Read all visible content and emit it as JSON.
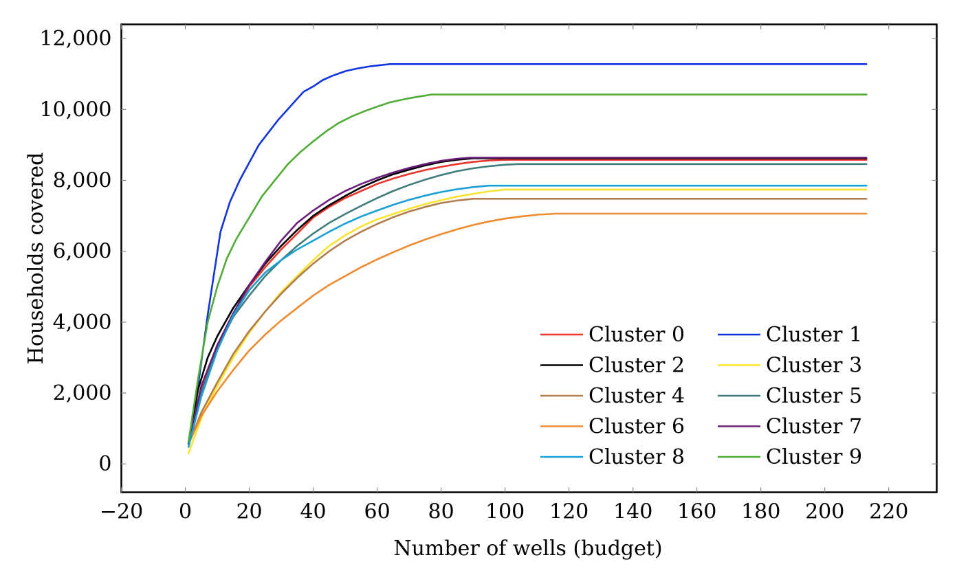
{
  "chart_data": {
    "type": "line",
    "title": "",
    "xlabel": "Number of wells (budget)",
    "ylabel": "Households covered",
    "xlim": [
      -20,
      235
    ],
    "ylim": [
      -800,
      12400
    ],
    "xticks": [
      -20,
      0,
      20,
      40,
      60,
      80,
      100,
      120,
      140,
      160,
      180,
      200,
      220
    ],
    "xtick_labels": [
      "−20",
      "0",
      "20",
      "40",
      "60",
      "80",
      "100",
      "120",
      "140",
      "160",
      "180",
      "200",
      "220"
    ],
    "yticks": [
      0,
      2000,
      4000,
      6000,
      8000,
      10000,
      12000
    ],
    "ytick_labels": [
      "0",
      "2,000",
      "4,000",
      "6,000",
      "8,000",
      "10,000",
      "12,000"
    ],
    "grid": false,
    "legend": {
      "position": "bottom-right",
      "columns": 2
    },
    "series": [
      {
        "name": "Cluster 0",
        "color": "#e8352e",
        "x": [
          1,
          5,
          10,
          15,
          20,
          25,
          30,
          35,
          40,
          45,
          50,
          55,
          60,
          65,
          70,
          75,
          80,
          85,
          90,
          95,
          100,
          213
        ],
        "y": [
          580,
          2100,
          3350,
          4250,
          5000,
          5550,
          6050,
          6500,
          6950,
          7250,
          7500,
          7700,
          7900,
          8050,
          8180,
          8290,
          8380,
          8460,
          8520,
          8560,
          8580,
          8580
        ]
      },
      {
        "name": "Cluster 1",
        "color": "#1033e0",
        "x": [
          1,
          4,
          7,
          11,
          14,
          17,
          20,
          23,
          26,
          29,
          32,
          35,
          37,
          40,
          43,
          46,
          50,
          54,
          58,
          62,
          64,
          213
        ],
        "y": [
          600,
          2200,
          4200,
          6550,
          7400,
          8000,
          8500,
          9000,
          9350,
          9700,
          10000,
          10300,
          10500,
          10650,
          10830,
          10950,
          11080,
          11160,
          11220,
          11260,
          11280,
          11280
        ]
      },
      {
        "name": "Cluster 2",
        "color": "#000000",
        "x": [
          1,
          4,
          7,
          10,
          15,
          20,
          25,
          30,
          35,
          40,
          45,
          50,
          55,
          60,
          65,
          70,
          75,
          80,
          85,
          90,
          213
        ],
        "y": [
          580,
          2100,
          3000,
          3600,
          4400,
          5050,
          5650,
          6150,
          6600,
          7000,
          7300,
          7560,
          7800,
          8000,
          8170,
          8300,
          8420,
          8520,
          8580,
          8620,
          8620
        ]
      },
      {
        "name": "Cluster 3",
        "color": "#f8e42f",
        "x": [
          1,
          3,
          6,
          10,
          15,
          20,
          25,
          30,
          35,
          40,
          45,
          50,
          55,
          60,
          65,
          70,
          75,
          80,
          85,
          90,
          95,
          100,
          213
        ],
        "y": [
          300,
          800,
          1500,
          2200,
          3000,
          3700,
          4300,
          4850,
          5300,
          5750,
          6150,
          6450,
          6700,
          6900,
          7050,
          7200,
          7330,
          7440,
          7540,
          7620,
          7690,
          7740,
          7740
        ]
      },
      {
        "name": "Cluster 4",
        "color": "#b07d4e",
        "x": [
          1,
          5,
          10,
          15,
          20,
          25,
          30,
          35,
          40,
          45,
          50,
          55,
          60,
          65,
          70,
          75,
          80,
          85,
          90,
          213
        ],
        "y": [
          550,
          1450,
          2300,
          3100,
          3750,
          4300,
          4800,
          5250,
          5650,
          6000,
          6300,
          6550,
          6770,
          6960,
          7120,
          7250,
          7360,
          7430,
          7480,
          7480
        ]
      },
      {
        "name": "Cluster 5",
        "color": "#3f7c7a",
        "x": [
          1,
          5,
          10,
          15,
          20,
          25,
          30,
          35,
          40,
          45,
          50,
          55,
          60,
          65,
          70,
          75,
          80,
          85,
          90,
          95,
          100,
          104,
          213
        ],
        "y": [
          560,
          2000,
          3250,
          4150,
          4750,
          5300,
          5750,
          6150,
          6500,
          6800,
          7050,
          7280,
          7500,
          7700,
          7870,
          8020,
          8150,
          8260,
          8340,
          8400,
          8440,
          8460,
          8460
        ]
      },
      {
        "name": "Cluster 6",
        "color": "#f08a2e",
        "x": [
          1,
          5,
          10,
          15,
          20,
          25,
          30,
          35,
          40,
          45,
          50,
          55,
          60,
          65,
          70,
          75,
          80,
          85,
          90,
          95,
          100,
          105,
          110,
          116,
          213
        ],
        "y": [
          560,
          1350,
          2050,
          2650,
          3200,
          3650,
          4050,
          4400,
          4750,
          5050,
          5300,
          5550,
          5770,
          5970,
          6160,
          6330,
          6480,
          6620,
          6740,
          6840,
          6920,
          6980,
          7030,
          7060,
          7060
        ]
      },
      {
        "name": "Cluster 7",
        "color": "#6b1d7a",
        "x": [
          1,
          5,
          10,
          15,
          20,
          25,
          30,
          35,
          40,
          45,
          50,
          55,
          60,
          65,
          70,
          75,
          80,
          85,
          89,
          213
        ],
        "y": [
          560,
          2200,
          3350,
          4250,
          5050,
          5700,
          6300,
          6800,
          7150,
          7450,
          7700,
          7900,
          8070,
          8220,
          8350,
          8460,
          8550,
          8610,
          8640,
          8640
        ]
      },
      {
        "name": "Cluster 8",
        "color": "#18a0d6",
        "x": [
          1,
          5,
          10,
          15,
          20,
          25,
          30,
          35,
          40,
          45,
          50,
          55,
          60,
          65,
          70,
          75,
          80,
          85,
          90,
          95,
          213
        ],
        "y": [
          480,
          1900,
          3200,
          4200,
          4900,
          5400,
          5750,
          6050,
          6300,
          6550,
          6780,
          6980,
          7150,
          7310,
          7450,
          7570,
          7670,
          7750,
          7810,
          7850,
          7850
        ]
      },
      {
        "name": "Cluster 9",
        "color": "#4fac34",
        "x": [
          1,
          4,
          7,
          10,
          13,
          16,
          20,
          24,
          28,
          32,
          36,
          40,
          44,
          48,
          52,
          56,
          60,
          64,
          68,
          72,
          77,
          213
        ],
        "y": [
          620,
          2400,
          4000,
          5000,
          5800,
          6350,
          6950,
          7550,
          8000,
          8450,
          8800,
          9100,
          9380,
          9620,
          9800,
          9950,
          10080,
          10200,
          10280,
          10350,
          10420,
          10420
        ]
      }
    ]
  }
}
